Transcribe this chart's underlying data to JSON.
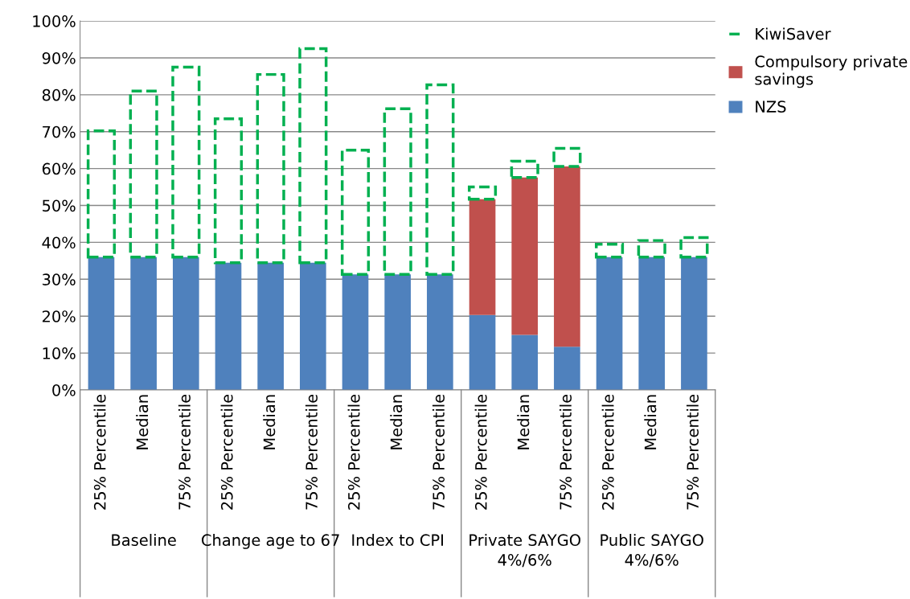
{
  "chart_data": {
    "type": "bar",
    "stacked": true,
    "categories": [
      "25% Percentile",
      "Median",
      "75% Percentile",
      "25% Percentile",
      "Median",
      "75% Percentile",
      "25% Percentile",
      "Median",
      "75% Percentile",
      "25% Percentile",
      "Median",
      "75% Percentile",
      "25% Percentile",
      "Median",
      "75% Percentile"
    ],
    "series": [
      {
        "name": "NZS",
        "color": "#4f81bd",
        "values": [
          36,
          36,
          36,
          34.5,
          34.5,
          34.5,
          31.3,
          31.3,
          31.3,
          20.3,
          14.9,
          11.7,
          36,
          36,
          36
        ]
      },
      {
        "name": "Compulsory private savings",
        "color": "#c0504d",
        "values": [
          0,
          0,
          0,
          0,
          0,
          0,
          0,
          0,
          0,
          31.4,
          42.7,
          48.9,
          0,
          0,
          0
        ]
      },
      {
        "name": "KiwiSaver",
        "color": "#00b050",
        "line_style": "dashed",
        "values": [
          34.2,
          45,
          51.5,
          39,
          51,
          58,
          33.7,
          44.9,
          51.4,
          3.3,
          4.4,
          4.9,
          3.5,
          4.5,
          5.3
        ]
      }
    ],
    "ylim": [
      0,
      100
    ],
    "yticks": [
      {
        "value": 0,
        "label": "0%"
      },
      {
        "value": 10,
        "label": "10%"
      },
      {
        "value": 20,
        "label": "20%"
      },
      {
        "value": 30,
        "label": "30%"
      },
      {
        "value": 40,
        "label": "40%"
      },
      {
        "value": 50,
        "label": "50%"
      },
      {
        "value": 60,
        "label": "60%"
      },
      {
        "value": 70,
        "label": "70%"
      },
      {
        "value": 80,
        "label": "80%"
      },
      {
        "value": 90,
        "label": "90%"
      },
      {
        "value": 100,
        "label": "100%"
      }
    ],
    "grid": "y",
    "legend": "top right",
    "annotations": [
      "Baseline",
      "Change age to 67",
      "Index to CPI",
      "Private SAYGO\n4%/6%",
      "Public SAYGO\n4%/6%"
    ]
  }
}
